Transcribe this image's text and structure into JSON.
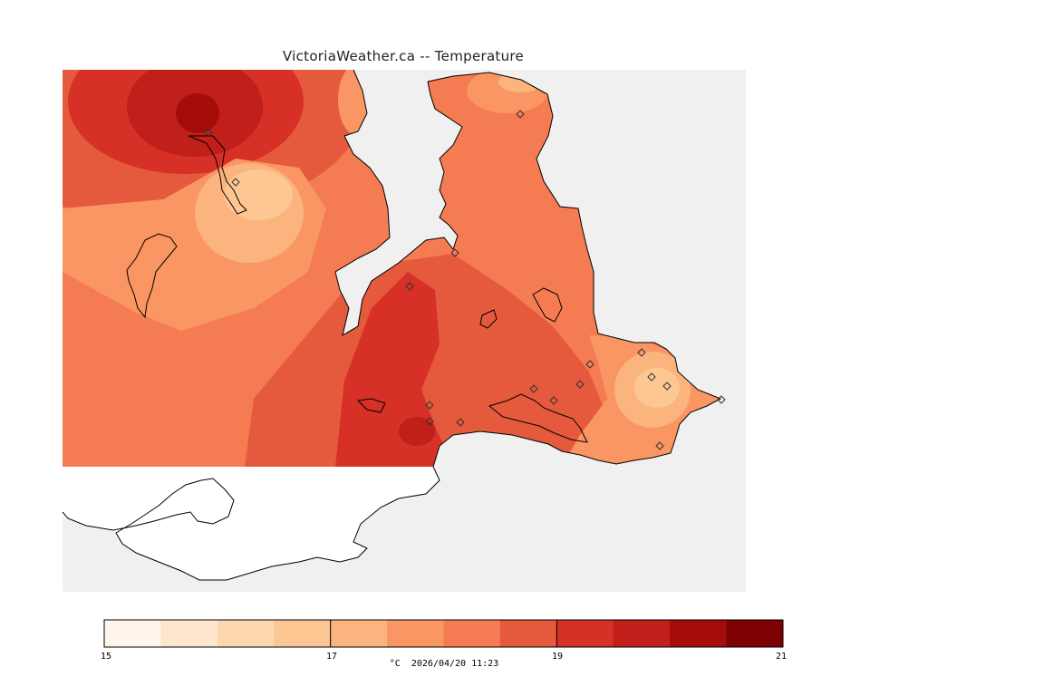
{
  "title": "VictoriaWeather.ca -- Temperature",
  "legend": {
    "unit": "°C",
    "timestamp": "2026/04/20 11:23",
    "min": 15,
    "max": 21,
    "tick_labels": [
      "15",
      "17",
      "19",
      "21"
    ],
    "colors": [
      "#fff5eb",
      "#fee6ce",
      "#fdd7b0",
      "#fdc793",
      "#fcb47e",
      "#f99663",
      "#f47b52",
      "#e55a3c",
      "#d73027",
      "#c01f1a",
      "#a40d0a",
      "#7f0000"
    ]
  },
  "map": {
    "water_color": "#f0f0f0",
    "land_outside_color": "#ffffff",
    "coastline_color": "#000000",
    "station_marker": "diamond-icon"
  }
}
